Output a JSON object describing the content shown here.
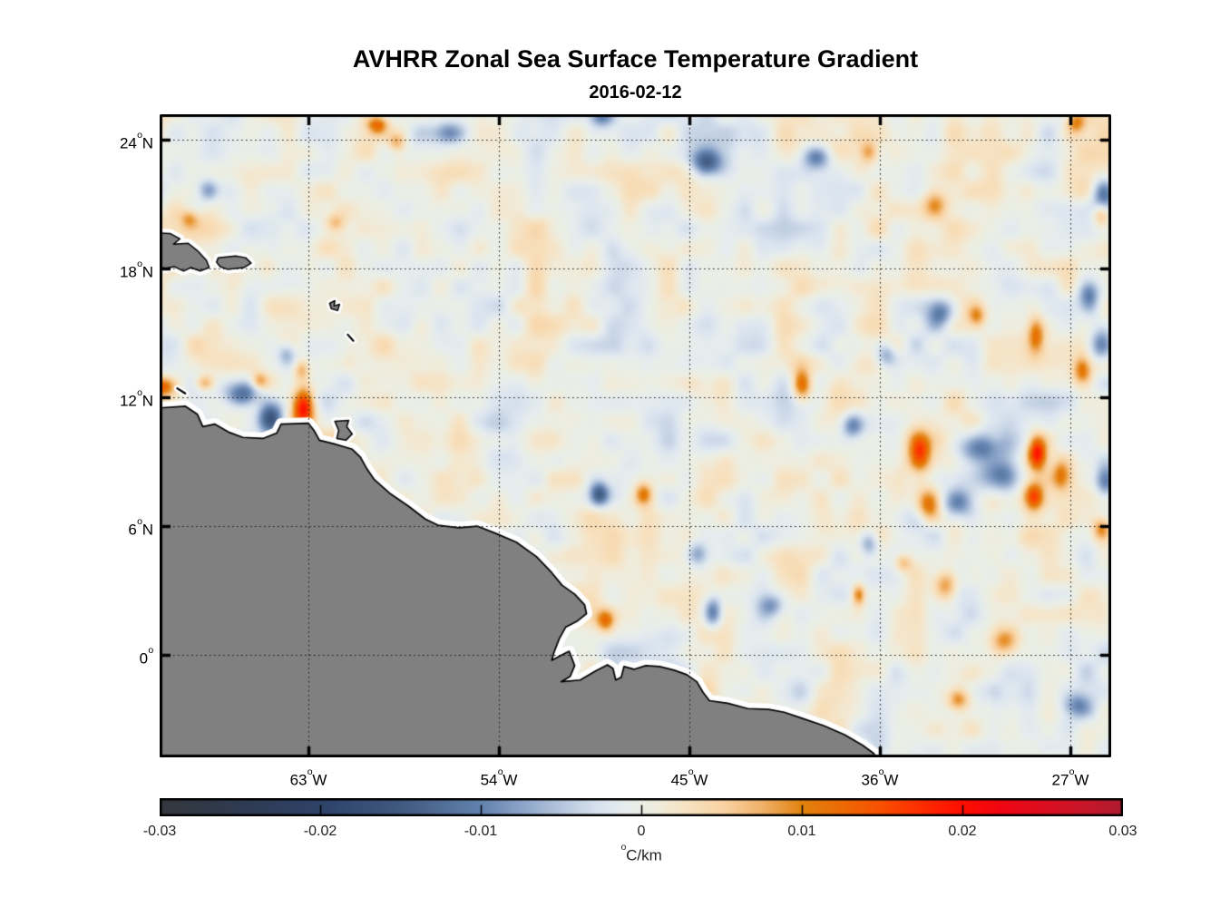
{
  "figure": {
    "title": "AVHRR Zonal Sea Surface Temperature Gradient",
    "subtitle": "2016-02-12"
  },
  "axes": {
    "degree_glyph": "o",
    "x": {
      "ticks": [
        {
          "num": "63",
          "suffix": "W",
          "lon_w": 63
        },
        {
          "num": "54",
          "suffix": "W",
          "lon_w": 54
        },
        {
          "num": "45",
          "suffix": "W",
          "lon_w": 45
        },
        {
          "num": "36",
          "suffix": "W",
          "lon_w": 36
        },
        {
          "num": "27",
          "suffix": "W",
          "lon_w": 27
        }
      ]
    },
    "y": {
      "ticks": [
        {
          "num": "24",
          "suffix": "N",
          "lat": 24
        },
        {
          "num": "18",
          "suffix": "N",
          "lat": 18
        },
        {
          "num": "12",
          "suffix": "N",
          "lat": 12
        },
        {
          "num": "6",
          "suffix": "N",
          "lat": 6
        },
        {
          "num": "0",
          "suffix": "",
          "lat": 0
        }
      ]
    }
  },
  "colorbar": {
    "unit_sup": "o",
    "unit_text": "C/km",
    "ticks": [
      {
        "label": "-0.03",
        "value": -0.03
      },
      {
        "label": "-0.02",
        "value": -0.02
      },
      {
        "label": "-0.01",
        "value": -0.01
      },
      {
        "label": "0",
        "value": 0
      },
      {
        "label": "0.01",
        "value": 0.01
      },
      {
        "label": "0.02",
        "value": 0.02
      },
      {
        "label": "0.03",
        "value": 0.03
      }
    ]
  },
  "chart_data": {
    "type": "heatmap",
    "title": "AVHRR Zonal Sea Surface Temperature Gradient",
    "date": "2016-02-12",
    "units": "°C/km",
    "projection": "equirectangular",
    "lon_w_range": [
      70.03,
      25.07
    ],
    "lat_range": [
      -4.77,
      25.18
    ],
    "value_range": [
      -0.03,
      0.03
    ],
    "grid": {
      "style": "dotted",
      "lon_w_lines": [
        63,
        54,
        45,
        36,
        27
      ],
      "lat_lines": [
        24,
        18,
        12,
        6,
        0
      ]
    },
    "land_color": "#808080",
    "coast_color": "#000000",
    "coast_halo_color": "#ffffff",
    "colormap_stops": [
      [
        -0.03,
        "#35383d"
      ],
      [
        -0.025,
        "#2e3a51"
      ],
      [
        -0.02,
        "#2e4268"
      ],
      [
        -0.015,
        "#40597f"
      ],
      [
        -0.01,
        "#6282ae"
      ],
      [
        -0.0075,
        "#8ba3c8"
      ],
      [
        -0.005,
        "#b5c6dd"
      ],
      [
        -0.0025,
        "#dae4ef"
      ],
      [
        -0.001,
        "#e6ecee"
      ],
      [
        0.0,
        "#eaeee5"
      ],
      [
        0.001,
        "#efecdd"
      ],
      [
        0.0025,
        "#f6e4c6"
      ],
      [
        0.005,
        "#f8d4a5"
      ],
      [
        0.0075,
        "#f1b26b"
      ],
      [
        0.01,
        "#e1830f"
      ],
      [
        0.0125,
        "#ec6b04"
      ],
      [
        0.015,
        "#f74f00"
      ],
      [
        0.0175,
        "#fd2c00"
      ],
      [
        0.02,
        "#ff0e00"
      ],
      [
        0.0225,
        "#ef0513"
      ],
      [
        0.025,
        "#db0e1f"
      ],
      [
        0.0275,
        "#c91629"
      ],
      [
        0.03,
        "#ae1b2e"
      ]
    ],
    "noise": {
      "seed": 7,
      "octaves": [
        {
          "scale_deg": 2.0,
          "amp": 0.0028
        },
        {
          "scale_deg": 0.9,
          "amp": 0.0024
        }
      ]
    },
    "features": [
      {
        "lon_w": 63.2,
        "lat": 11.45,
        "peak": 0.021,
        "sx": 0.35,
        "sy": 0.62
      },
      {
        "lon_w": 66.1,
        "lat": 12.05,
        "peak": -0.013,
        "sx": 0.55,
        "sy": 0.4
      },
      {
        "lon_w": 64.75,
        "lat": 10.95,
        "peak": -0.016,
        "sx": 0.42,
        "sy": 0.5
      },
      {
        "lon_w": 67.9,
        "lat": 12.6,
        "peak": 0.009,
        "sx": 0.3,
        "sy": 0.25
      },
      {
        "lon_w": 69.95,
        "lat": 12.45,
        "peak": 0.013,
        "sx": 0.45,
        "sy": 0.3
      },
      {
        "lon_w": 65.3,
        "lat": 12.7,
        "peak": 0.009,
        "sx": 0.28,
        "sy": 0.28
      },
      {
        "lon_w": 63.3,
        "lat": 13.2,
        "peak": 0.007,
        "sx": 0.25,
        "sy": 0.32
      },
      {
        "lon_w": 64.0,
        "lat": 14.0,
        "peak": -0.007,
        "sx": 0.3,
        "sy": 0.38
      },
      {
        "lon_w": 59.7,
        "lat": 24.7,
        "peak": 0.012,
        "sx": 0.35,
        "sy": 0.3
      },
      {
        "lon_w": 58.8,
        "lat": 23.9,
        "peak": 0.007,
        "sx": 0.3,
        "sy": 0.3
      },
      {
        "lon_w": 49.1,
        "lat": 25.1,
        "peak": -0.011,
        "sx": 0.42,
        "sy": 0.35
      },
      {
        "lon_w": 44.1,
        "lat": 22.9,
        "peak": -0.013,
        "sx": 0.5,
        "sy": 0.42
      },
      {
        "lon_w": 38.9,
        "lat": 23.2,
        "peak": -0.012,
        "sx": 0.45,
        "sy": 0.4
      },
      {
        "lon_w": 36.4,
        "lat": 23.4,
        "peak": 0.008,
        "sx": 0.3,
        "sy": 0.35
      },
      {
        "lon_w": 33.3,
        "lat": 21.0,
        "peak": 0.008,
        "sx": 0.4,
        "sy": 0.5
      },
      {
        "lon_w": 25.3,
        "lat": 21.4,
        "peak": -0.012,
        "sx": 0.4,
        "sy": 0.55
      },
      {
        "lon_w": 25.4,
        "lat": 20.5,
        "peak": 0.009,
        "sx": 0.3,
        "sy": 0.4
      },
      {
        "lon_w": 26.6,
        "lat": 24.8,
        "peak": 0.009,
        "sx": 0.3,
        "sy": 0.35
      },
      {
        "lon_w": 67.7,
        "lat": 21.6,
        "peak": -0.008,
        "sx": 0.35,
        "sy": 0.35
      },
      {
        "lon_w": 68.6,
        "lat": 20.3,
        "peak": 0.007,
        "sx": 0.3,
        "sy": 0.3
      },
      {
        "lon_w": 61.7,
        "lat": 20.1,
        "peak": 0.006,
        "sx": 0.3,
        "sy": 0.3
      },
      {
        "lon_w": 56.2,
        "lat": 24.3,
        "peak": -0.007,
        "sx": 0.45,
        "sy": 0.35
      },
      {
        "lon_w": 39.6,
        "lat": 12.5,
        "peak": 0.012,
        "sx": 0.3,
        "sy": 0.55
      },
      {
        "lon_w": 35.6,
        "lat": 13.9,
        "peak": -0.008,
        "sx": 0.35,
        "sy": 0.4
      },
      {
        "lon_w": 33.0,
        "lat": 15.9,
        "peak": -0.01,
        "sx": 0.45,
        "sy": 0.45
      },
      {
        "lon_w": 28.5,
        "lat": 14.9,
        "peak": 0.011,
        "sx": 0.28,
        "sy": 0.6
      },
      {
        "lon_w": 31.3,
        "lat": 15.75,
        "peak": 0.008,
        "sx": 0.3,
        "sy": 0.35
      },
      {
        "lon_w": 26.0,
        "lat": 16.6,
        "peak": -0.011,
        "sx": 0.35,
        "sy": 0.55
      },
      {
        "lon_w": 25.4,
        "lat": 14.4,
        "peak": -0.012,
        "sx": 0.4,
        "sy": 0.5
      },
      {
        "lon_w": 26.3,
        "lat": 13.2,
        "peak": 0.011,
        "sx": 0.3,
        "sy": 0.45
      },
      {
        "lon_w": 31.2,
        "lat": 9.6,
        "peak": -0.012,
        "sx": 0.75,
        "sy": 0.5
      },
      {
        "lon_w": 30.3,
        "lat": 8.3,
        "peak": -0.013,
        "sx": 0.65,
        "sy": 0.6
      },
      {
        "lon_w": 32.2,
        "lat": 7.0,
        "peak": -0.01,
        "sx": 0.5,
        "sy": 0.45
      },
      {
        "lon_w": 28.45,
        "lat": 9.35,
        "peak": 0.019,
        "sx": 0.3,
        "sy": 0.55
      },
      {
        "lon_w": 28.6,
        "lat": 7.3,
        "peak": 0.015,
        "sx": 0.32,
        "sy": 0.45
      },
      {
        "lon_w": 27.3,
        "lat": 8.3,
        "peak": 0.009,
        "sx": 0.3,
        "sy": 0.5
      },
      {
        "lon_w": 34.0,
        "lat": 9.4,
        "peak": 0.013,
        "sx": 0.35,
        "sy": 0.6
      },
      {
        "lon_w": 33.6,
        "lat": 6.9,
        "peak": 0.012,
        "sx": 0.4,
        "sy": 0.5
      },
      {
        "lon_w": 37.2,
        "lat": 10.6,
        "peak": -0.009,
        "sx": 0.35,
        "sy": 0.4
      },
      {
        "lon_w": 25.2,
        "lat": 8.0,
        "peak": -0.011,
        "sx": 0.35,
        "sy": 0.6
      },
      {
        "lon_w": 25.4,
        "lat": 5.8,
        "peak": 0.01,
        "sx": 0.3,
        "sy": 0.4
      },
      {
        "lon_w": 49.2,
        "lat": 7.4,
        "peak": -0.014,
        "sx": 0.32,
        "sy": 0.38
      },
      {
        "lon_w": 47.1,
        "lat": 7.4,
        "peak": 0.012,
        "sx": 0.3,
        "sy": 0.38
      },
      {
        "lon_w": 44.6,
        "lat": 4.6,
        "peak": -0.008,
        "sx": 0.35,
        "sy": 0.4
      },
      {
        "lon_w": 43.8,
        "lat": 1.9,
        "peak": -0.012,
        "sx": 0.3,
        "sy": 0.5
      },
      {
        "lon_w": 48.9,
        "lat": 1.5,
        "peak": 0.011,
        "sx": 0.3,
        "sy": 0.35
      },
      {
        "lon_w": 36.9,
        "lat": 2.7,
        "peak": 0.012,
        "sx": 0.22,
        "sy": 0.35
      },
      {
        "lon_w": 41.0,
        "lat": 2.2,
        "peak": -0.007,
        "sx": 0.4,
        "sy": 0.35
      },
      {
        "lon_w": 32.8,
        "lat": 3.1,
        "peak": 0.01,
        "sx": 0.4,
        "sy": 0.5
      },
      {
        "lon_w": 30.0,
        "lat": 0.5,
        "peak": 0.009,
        "sx": 0.45,
        "sy": 0.45
      },
      {
        "lon_w": 26.6,
        "lat": -2.5,
        "peak": -0.008,
        "sx": 0.45,
        "sy": 0.4
      },
      {
        "lon_w": 32.2,
        "lat": -2.2,
        "peak": 0.009,
        "sx": 0.35,
        "sy": 0.35
      },
      {
        "lon_w": 36.4,
        "lat": 5.1,
        "peak": -0.008,
        "sx": 0.3,
        "sy": 0.4
      },
      {
        "lon_w": 34.8,
        "lat": 4.2,
        "peak": 0.007,
        "sx": 0.3,
        "sy": 0.3
      }
    ],
    "land": {
      "continent": [
        [
          70.5,
          11.52
        ],
        [
          70.1,
          11.5
        ],
        [
          68.81,
          11.58
        ],
        [
          68.25,
          11.21
        ],
        [
          67.99,
          10.63
        ],
        [
          67.43,
          10.75
        ],
        [
          66.78,
          10.38
        ],
        [
          66.1,
          10.13
        ],
        [
          65.15,
          10.08
        ],
        [
          64.5,
          10.33
        ],
        [
          64.29,
          10.75
        ],
        [
          63.0,
          10.79
        ],
        [
          62.74,
          10.46
        ],
        [
          62.48,
          10.0
        ],
        [
          61.79,
          9.83
        ],
        [
          60.93,
          9.58
        ],
        [
          60.54,
          9.21
        ],
        [
          60.24,
          8.67
        ],
        [
          59.89,
          8.17
        ],
        [
          59.12,
          7.5
        ],
        [
          58.26,
          6.92
        ],
        [
          57.48,
          6.33
        ],
        [
          56.88,
          6.04
        ],
        [
          55.89,
          5.92
        ],
        [
          55.03,
          6.0
        ],
        [
          54.17,
          5.67
        ],
        [
          53.18,
          5.25
        ],
        [
          52.23,
          4.58
        ],
        [
          51.5,
          3.83
        ],
        [
          51.02,
          3.25
        ],
        [
          50.42,
          2.83
        ],
        [
          49.95,
          2.33
        ],
        [
          49.86,
          1.92
        ],
        [
          50.29,
          1.58
        ],
        [
          50.85,
          1.29
        ],
        [
          51.15,
          0.75
        ],
        [
          51.41,
          0.08
        ],
        [
          51.5,
          -0.25
        ],
        [
          51.02,
          0.0
        ],
        [
          50.68,
          0.17
        ],
        [
          50.42,
          -0.5
        ],
        [
          50.63,
          -1.0
        ],
        [
          51.06,
          -1.25
        ],
        [
          50.16,
          -1.17
        ],
        [
          49.43,
          -0.75
        ],
        [
          48.87,
          -0.46
        ],
        [
          48.61,
          -0.63
        ],
        [
          48.48,
          -1.17
        ],
        [
          48.22,
          -1.04
        ],
        [
          48.09,
          -0.54
        ],
        [
          47.62,
          -0.67
        ],
        [
          47.06,
          -0.5
        ],
        [
          46.41,
          -0.54
        ],
        [
          45.72,
          -0.71
        ],
        [
          45.12,
          -0.92
        ],
        [
          44.65,
          -1.25
        ],
        [
          44.35,
          -1.75
        ],
        [
          44.05,
          -2.13
        ],
        [
          43.19,
          -2.25
        ],
        [
          42.24,
          -2.5
        ],
        [
          41.25,
          -2.54
        ],
        [
          40.52,
          -2.67
        ],
        [
          39.65,
          -2.96
        ],
        [
          38.66,
          -3.29
        ],
        [
          37.67,
          -3.71
        ],
        [
          36.81,
          -4.21
        ],
        [
          36.3,
          -4.58
        ],
        [
          36.05,
          -4.9
        ]
      ],
      "continent_close": [
        [
          35.9,
          -5.4
        ],
        [
          70.8,
          -5.4
        ]
      ],
      "islands": [
        {
          "name": "hispaniola",
          "halo": 10,
          "pts": [
            [
              70.4,
              19.65
            ],
            [
              69.54,
              19.63
            ],
            [
              69.07,
              19.38
            ],
            [
              69.37,
              19.13
            ],
            [
              68.68,
              19.17
            ],
            [
              68.25,
              18.83
            ],
            [
              67.82,
              18.38
            ],
            [
              67.69,
              18.04
            ],
            [
              68.12,
              17.88
            ],
            [
              68.55,
              18.04
            ],
            [
              68.9,
              17.88
            ],
            [
              69.33,
              18.08
            ],
            [
              69.76,
              18.0
            ],
            [
              70.4,
              18.17
            ]
          ]
        },
        {
          "name": "puerto-rico",
          "halo": 9,
          "pts": [
            [
              67.26,
              18.5
            ],
            [
              66.44,
              18.58
            ],
            [
              65.97,
              18.5
            ],
            [
              65.71,
              18.25
            ],
            [
              66.05,
              18.04
            ],
            [
              66.83,
              17.96
            ],
            [
              67.17,
              18.08
            ],
            [
              67.34,
              18.29
            ]
          ]
        },
        {
          "name": "trinidad",
          "halo": 8,
          "pts": [
            [
              61.75,
              10.88
            ],
            [
              61.1,
              10.92
            ],
            [
              61.19,
              10.63
            ],
            [
              60.93,
              10.29
            ],
            [
              61.23,
              10.0
            ],
            [
              61.66,
              10.08
            ],
            [
              61.57,
              10.46
            ]
          ]
        },
        {
          "name": "guadeloupe",
          "halo": 7,
          "pts": [
            [
              62.0,
              16.38
            ],
            [
              61.75,
              16.5
            ],
            [
              61.79,
              16.25
            ],
            [
              61.53,
              16.33
            ],
            [
              61.62,
              16.04
            ],
            [
              61.92,
              16.13
            ]
          ]
        }
      ],
      "dashes": [
        {
          "name": "martinique",
          "pts": [
            [
              61.14,
              14.92
            ],
            [
              60.88,
              14.63
            ]
          ]
        },
        {
          "name": "small-cay",
          "pts": [
            [
              69.2,
              12.42
            ],
            [
              68.82,
              12.18
            ]
          ]
        }
      ]
    }
  }
}
